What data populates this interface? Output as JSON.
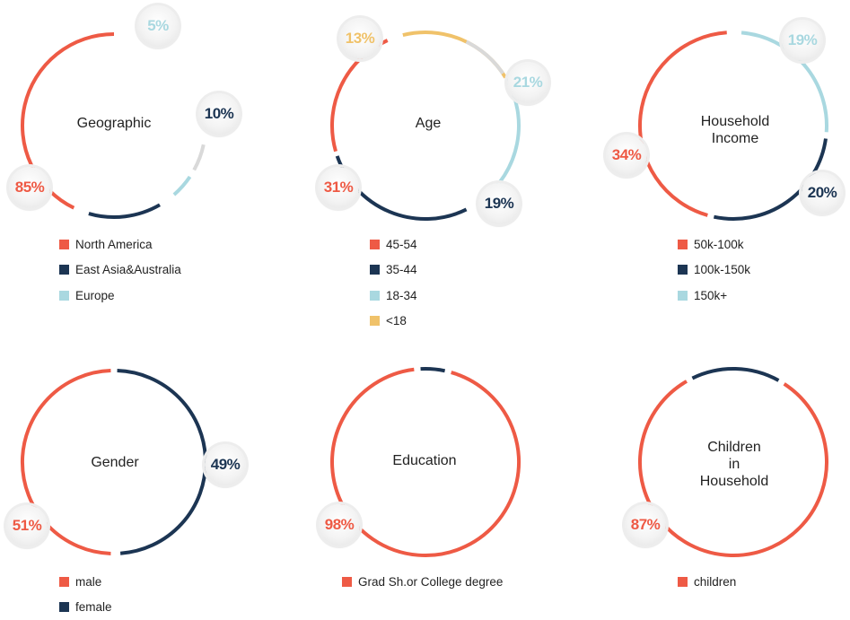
{
  "chart_data": [
    {
      "type": "pie",
      "title": "Geographic",
      "series": [
        {
          "name": "North America",
          "value": 85,
          "color": "#EE5A45"
        },
        {
          "name": "East Asia&Australia",
          "value": 10,
          "color": "#1C3553"
        },
        {
          "name": "Europe",
          "value": 5,
          "color": "#A9D8E0"
        }
      ]
    },
    {
      "type": "pie",
      "title": "Age",
      "series": [
        {
          "name": "45-54",
          "value": 31,
          "color": "#EE5A45"
        },
        {
          "name": "35-44",
          "value": 19,
          "color": "#1C3553"
        },
        {
          "name": "18-34",
          "value": 21,
          "color": "#A9D8E0"
        },
        {
          "name": "<18",
          "value": 13,
          "color": "#F0C26A"
        }
      ]
    },
    {
      "type": "pie",
      "title": "Household Income",
      "series": [
        {
          "name": "50k-100k",
          "value": 34,
          "color": "#EE5A45"
        },
        {
          "name": "100k-150k",
          "value": 20,
          "color": "#1C3553"
        },
        {
          "name": "150k+",
          "value": 19,
          "color": "#A9D8E0"
        }
      ]
    },
    {
      "type": "pie",
      "title": "Gender",
      "series": [
        {
          "name": "male",
          "value": 51,
          "color": "#EE5A45"
        },
        {
          "name": "female",
          "value": 49,
          "color": "#1C3553"
        }
      ]
    },
    {
      "type": "pie",
      "title": "Education",
      "series": [
        {
          "name": "Grad Sh.or College degree",
          "value": 98,
          "color": "#EE5A45"
        }
      ]
    },
    {
      "type": "pie",
      "title": "Children in Household",
      "series": [
        {
          "name": "children",
          "value": 87,
          "color": "#EE5A45"
        }
      ]
    }
  ],
  "colors": {
    "coral": "#EE5A45",
    "navy": "#1C3553",
    "light_blue": "#A9D8E0",
    "yellow": "#F0C26A",
    "remainder": "#D9D9D9"
  }
}
